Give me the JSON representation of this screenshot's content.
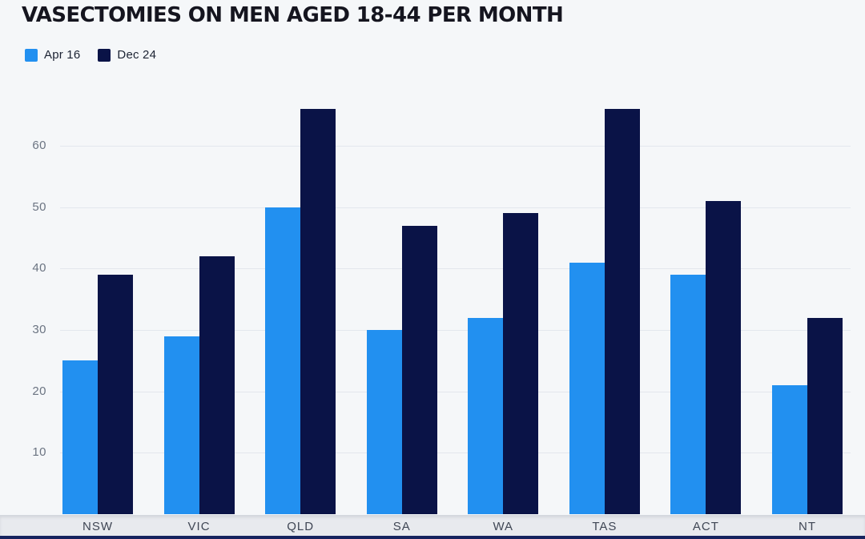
{
  "page": {
    "title": "VASECTOMIES ON MEN AGED 18-44 PER MONTH"
  },
  "chart_data": {
    "type": "bar",
    "title": "VASECTOMIES ON MEN AGED 18-44 PER MONTH",
    "categories": [
      "NSW",
      "VIC",
      "QLD",
      "SA",
      "WA",
      "TAS",
      "ACT",
      "NT"
    ],
    "series": [
      {
        "name": "Apr 16",
        "color": "#2290f0",
        "values": [
          25,
          29,
          50,
          30,
          32,
          41,
          39,
          21
        ]
      },
      {
        "name": "Dec 24",
        "color": "#0a1347",
        "values": [
          39,
          42,
          66,
          47,
          49,
          66,
          51,
          32
        ]
      }
    ],
    "yticks": [
      10,
      20,
      30,
      40,
      50,
      60
    ],
    "ylim": [
      0,
      68
    ],
    "grid": "horizontal-only",
    "legend_position": "top-left"
  },
  "colors": {
    "background": "#f5f7f9",
    "gridline": "#e3e7ed",
    "title_text": "#15151f",
    "legend_text": "#1c2333",
    "tick_text": "#6b7482",
    "category_text": "#3f4654",
    "footer_band": "#e8eaee",
    "footer_border": "#d3d7dd",
    "bottom_strip": "#16235e"
  }
}
